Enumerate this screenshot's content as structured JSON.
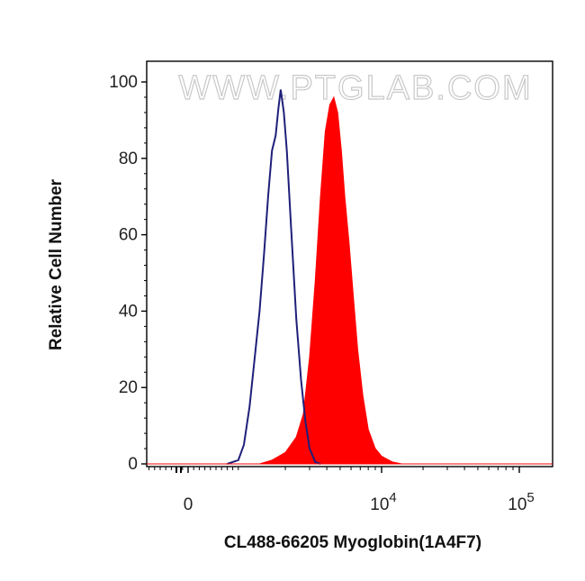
{
  "chart_data": {
    "type": "area",
    "xlabel": "CL488-66205 Myoglobin(1A4F7)",
    "ylabel": "Relative Cell Number",
    "x_scale": "biexponential (log above 10^3)",
    "ylim": [
      0,
      100
    ],
    "yticks": [
      0,
      20,
      40,
      60,
      80,
      100
    ],
    "xtick_labels": [
      {
        "value": 0,
        "base": "0",
        "exp": ""
      },
      {
        "value": 10000,
        "base": "10",
        "exp": "4"
      },
      {
        "value": 100000,
        "base": "10",
        "exp": "5"
      }
    ],
    "watermark": "WWW.PTGLAB.COM",
    "colors": {
      "filled": "#ff0000",
      "outline": "#1f1f7a"
    },
    "series": [
      {
        "style": "outline",
        "points": [
          [
            700,
            0
          ],
          [
            900,
            1
          ],
          [
            1000,
            5
          ],
          [
            1100,
            15
          ],
          [
            1200,
            28
          ],
          [
            1300,
            40
          ],
          [
            1400,
            55
          ],
          [
            1500,
            70
          ],
          [
            1600,
            82
          ],
          [
            1650,
            84
          ],
          [
            1700,
            86
          ],
          [
            1780,
            93
          ],
          [
            1850,
            98
          ],
          [
            1950,
            92
          ],
          [
            2050,
            82
          ],
          [
            2200,
            62
          ],
          [
            2400,
            38
          ],
          [
            2600,
            22
          ],
          [
            2800,
            11
          ],
          [
            3000,
            4
          ],
          [
            3300,
            0.5
          ],
          [
            3600,
            0
          ]
        ]
      },
      {
        "style": "filled",
        "points": [
          [
            1300,
            0
          ],
          [
            1600,
            1
          ],
          [
            2000,
            3
          ],
          [
            2400,
            7
          ],
          [
            2700,
            13
          ],
          [
            3000,
            28
          ],
          [
            3300,
            48
          ],
          [
            3600,
            70
          ],
          [
            3900,
            87
          ],
          [
            4200,
            94
          ],
          [
            4500,
            96
          ],
          [
            4800,
            92
          ],
          [
            5100,
            82
          ],
          [
            5400,
            70
          ],
          [
            5800,
            58
          ],
          [
            6200,
            45
          ],
          [
            6700,
            30
          ],
          [
            7300,
            18
          ],
          [
            8000,
            9
          ],
          [
            9000,
            4
          ],
          [
            10000,
            2
          ],
          [
            12000,
            0.5
          ],
          [
            14000,
            0
          ]
        ]
      }
    ]
  }
}
